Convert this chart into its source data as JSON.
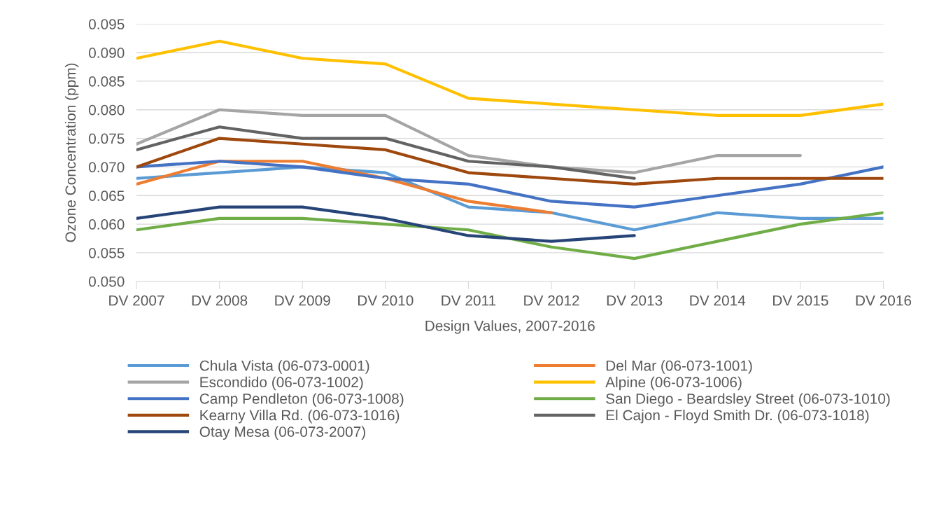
{
  "chart_data": {
    "type": "line",
    "xlabel": "Design Values, 2007-2016",
    "ylabel": "Ozone Concentration (ppm)",
    "categories": [
      "DV 2007",
      "DV 2008",
      "DV 2009",
      "DV 2010",
      "DV 2011",
      "DV 2012",
      "DV 2013",
      "DV 2014",
      "DV 2015",
      "DV 2016"
    ],
    "ylim": [
      0.05,
      0.095
    ],
    "yticks": [
      {
        "value": 0.05,
        "label": "0.050"
      },
      {
        "value": 0.055,
        "label": "0.055"
      },
      {
        "value": 0.06,
        "label": "0.060"
      },
      {
        "value": 0.065,
        "label": "0.065"
      },
      {
        "value": 0.07,
        "label": "0.070"
      },
      {
        "value": 0.075,
        "label": "0.075"
      },
      {
        "value": 0.08,
        "label": "0.080"
      },
      {
        "value": 0.085,
        "label": "0.085"
      },
      {
        "value": 0.09,
        "label": "0.090"
      },
      {
        "value": 0.095,
        "label": "0.095"
      }
    ],
    "grid": "y",
    "legend": "bottom",
    "marker": "none",
    "line_style": "solid",
    "series": [
      {
        "name": "Chula Vista (06-073-0001)",
        "color": "#5b9bd5",
        "values": [
          0.068,
          0.069,
          0.07,
          0.069,
          0.063,
          0.062,
          0.059,
          0.062,
          0.061,
          0.061
        ]
      },
      {
        "name": "Del Mar (06-073-1001)",
        "color": "#ed7d31",
        "values": [
          0.067,
          0.071,
          0.071,
          0.068,
          0.064,
          0.062,
          null,
          null,
          null,
          null
        ]
      },
      {
        "name": "Escondido (06-073-1002)",
        "color": "#a5a5a5",
        "values": [
          0.074,
          0.08,
          0.079,
          0.079,
          0.072,
          0.07,
          0.069,
          0.072,
          0.072,
          null
        ]
      },
      {
        "name": "Alpine (06-073-1006)",
        "color": "#ffc000",
        "values": [
          0.089,
          0.092,
          0.089,
          0.088,
          0.082,
          0.081,
          0.08,
          0.079,
          0.079,
          0.081
        ]
      },
      {
        "name": "Camp Pendleton (06-073-1008)",
        "color": "#4472c4",
        "values": [
          0.07,
          0.071,
          0.07,
          0.068,
          0.067,
          0.064,
          0.063,
          0.065,
          0.067,
          0.07
        ]
      },
      {
        "name": "San Diego - Beardsley Street (06-073-1010)",
        "color": "#70ad47",
        "values": [
          0.059,
          0.061,
          0.061,
          0.06,
          0.059,
          0.056,
          0.054,
          0.057,
          0.06,
          0.062
        ]
      },
      {
        "name": "Kearny Villa Rd. (06-073-1016)",
        "color": "#9e480e",
        "values": [
          0.07,
          0.075,
          0.074,
          0.073,
          0.069,
          0.068,
          0.067,
          0.068,
          0.068,
          0.068
        ]
      },
      {
        "name": "El Cajon - Floyd Smith Dr. (06-073-1018)",
        "color": "#636363",
        "values": [
          0.073,
          0.077,
          0.075,
          0.075,
          0.071,
          0.07,
          0.068,
          null,
          null,
          null
        ]
      },
      {
        "name": "Otay Mesa (06-073-2007)",
        "color": "#264478",
        "values": [
          0.061,
          0.063,
          0.063,
          0.061,
          0.058,
          0.057,
          0.058,
          null,
          null,
          null
        ]
      }
    ]
  }
}
